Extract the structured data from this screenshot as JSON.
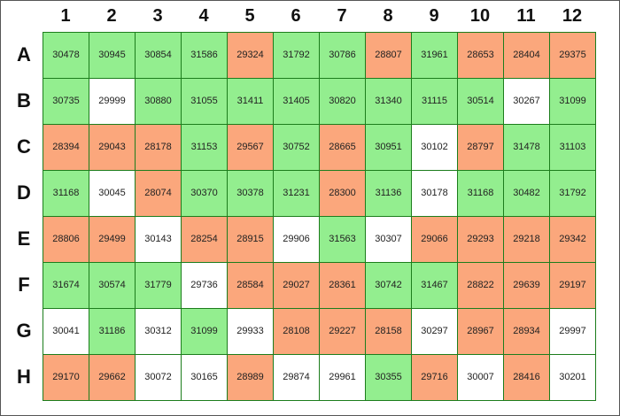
{
  "plate": {
    "columns": [
      "1",
      "2",
      "3",
      "4",
      "5",
      "6",
      "7",
      "8",
      "9",
      "10",
      "11",
      "12"
    ],
    "rows": [
      {
        "label": "A",
        "values": [
          30478,
          30945,
          30854,
          31586,
          29324,
          31792,
          30786,
          28807,
          31961,
          28653,
          28404,
          29375
        ],
        "colors": [
          "#93ee8f",
          "#93ee8f",
          "#93ee8f",
          "#93ee8f",
          "#fba77c",
          "#93ee8f",
          "#93ee8f",
          "#fba77c",
          "#93ee8f",
          "#fba77c",
          "#fba77c",
          "#fba77c"
        ]
      },
      {
        "label": "B",
        "values": [
          30735,
          29999,
          30880,
          31055,
          31411,
          31405,
          30820,
          31340,
          31115,
          30514,
          30267,
          31099
        ],
        "colors": [
          "#93ee8f",
          "#ffffff",
          "#93ee8f",
          "#93ee8f",
          "#93ee8f",
          "#93ee8f",
          "#93ee8f",
          "#93ee8f",
          "#93ee8f",
          "#93ee8f",
          "#ffffff",
          "#93ee8f"
        ]
      },
      {
        "label": "C",
        "values": [
          28394,
          29043,
          28178,
          31153,
          29567,
          30752,
          28665,
          30951,
          30102,
          28797,
          31478,
          31103
        ],
        "colors": [
          "#fba77c",
          "#fba77c",
          "#fba77c",
          "#93ee8f",
          "#fba77c",
          "#93ee8f",
          "#fba77c",
          "#93ee8f",
          "#ffffff",
          "#fba77c",
          "#93ee8f",
          "#93ee8f"
        ]
      },
      {
        "label": "D",
        "values": [
          31168,
          30045,
          28074,
          30370,
          30378,
          31231,
          28300,
          31136,
          30178,
          31168,
          30482,
          31792
        ],
        "colors": [
          "#93ee8f",
          "#ffffff",
          "#fba77c",
          "#93ee8f",
          "#93ee8f",
          "#93ee8f",
          "#fba77c",
          "#93ee8f",
          "#ffffff",
          "#93ee8f",
          "#93ee8f",
          "#93ee8f"
        ]
      },
      {
        "label": "E",
        "values": [
          28806,
          29499,
          30143,
          28254,
          28915,
          29906,
          31563,
          30307,
          29066,
          29293,
          29218,
          29342
        ],
        "colors": [
          "#fba77c",
          "#fba77c",
          "#ffffff",
          "#fba77c",
          "#fba77c",
          "#ffffff",
          "#93ee8f",
          "#ffffff",
          "#fba77c",
          "#fba77c",
          "#fba77c",
          "#fba77c"
        ]
      },
      {
        "label": "F",
        "values": [
          31674,
          30574,
          31779,
          29736,
          28584,
          29027,
          28361,
          30742,
          31467,
          28822,
          29639,
          29197
        ],
        "colors": [
          "#93ee8f",
          "#93ee8f",
          "#93ee8f",
          "#ffffff",
          "#fba77c",
          "#fba77c",
          "#fba77c",
          "#93ee8f",
          "#93ee8f",
          "#fba77c",
          "#fba77c",
          "#fba77c"
        ]
      },
      {
        "label": "G",
        "values": [
          30041,
          31186,
          30312,
          31099,
          29933,
          28108,
          29227,
          28158,
          30297,
          28967,
          28934,
          29997
        ],
        "colors": [
          "#ffffff",
          "#93ee8f",
          "#ffffff",
          "#93ee8f",
          "#ffffff",
          "#fba77c",
          "#fba77c",
          "#fba77c",
          "#ffffff",
          "#fba77c",
          "#fba77c",
          "#ffffff"
        ]
      },
      {
        "label": "H",
        "values": [
          29170,
          29662,
          30072,
          30165,
          28989,
          29874,
          29961,
          30355,
          29716,
          30007,
          28416,
          30201
        ],
        "colors": [
          "#fba77c",
          "#fba77c",
          "#ffffff",
          "#ffffff",
          "#fba77c",
          "#ffffff",
          "#ffffff",
          "#93ee8f",
          "#fba77c",
          "#ffffff",
          "#fba77c",
          "#ffffff"
        ]
      }
    ]
  }
}
